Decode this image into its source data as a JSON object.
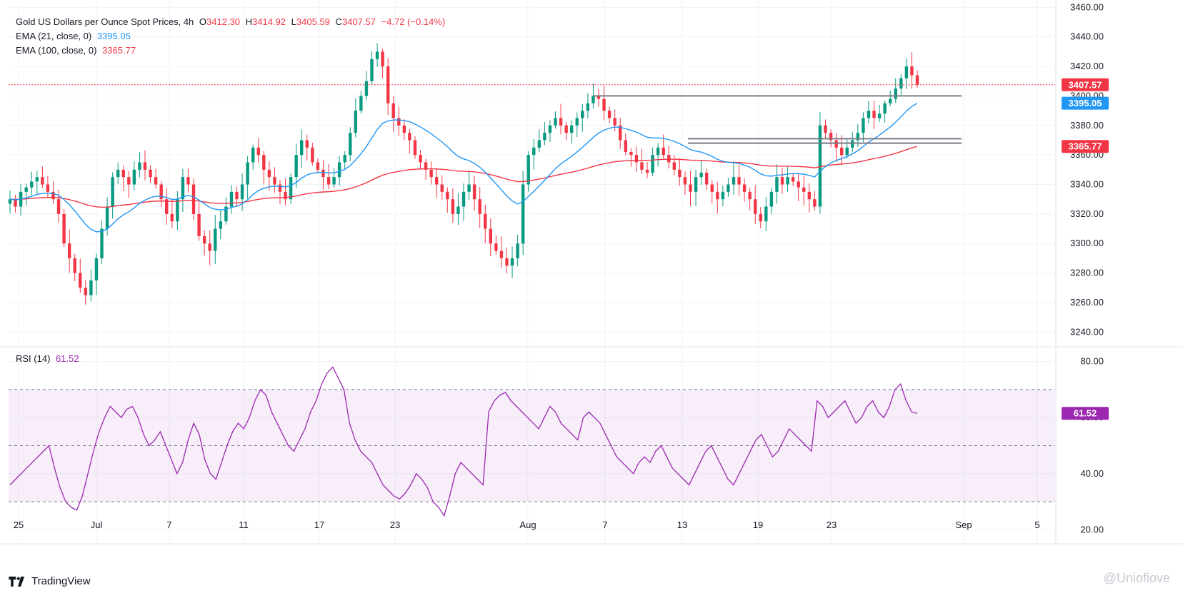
{
  "header": {
    "symbol": "Gold US Dollars per Ounce Spot Prices, 4h",
    "o_label": "O",
    "o_value": "3412.30",
    "h_label": "H",
    "h_value": "3414.92",
    "l_label": "L",
    "l_value": "3405.59",
    "c_label": "C",
    "c_value": "3407.57",
    "change": "−4.72 (−0.14%)"
  },
  "ema21": {
    "label": "EMA (21, close, 0)",
    "value": "3395.05",
    "color": "#2196f3"
  },
  "ema100": {
    "label": "EMA (100, close, 0)",
    "value": "3365.77",
    "color": "#f23645"
  },
  "rsi": {
    "label": "RSI (14)",
    "value": "61.52",
    "color": "#9c27b0"
  },
  "footer": {
    "brand": "TradingView",
    "watermark": "@Uniofiove"
  },
  "colors": {
    "up": "#089981",
    "down": "#f23645",
    "grid": "#f0f3fa",
    "rsi_band": "#9c27b0"
  },
  "chart_data": [
    {
      "type": "candlestick",
      "title": "Gold US Dollars per Ounce Spot Prices, 4h",
      "timeframe": "4h",
      "x_ticks": [
        "25",
        "Jul",
        "7",
        "11",
        "17",
        "23",
        "Aug",
        "7",
        "13",
        "19",
        "23",
        "Sep",
        "5"
      ],
      "y_ticks": [
        3240,
        3260,
        3280,
        3300,
        3320,
        3340,
        3360,
        3380,
        3400,
        3420,
        3440,
        3460
      ],
      "ylim": [
        3230,
        3465
      ],
      "last_price": 3407.57,
      "close_series": [
        3330,
        3325,
        3335,
        3338,
        3342,
        3345,
        3340,
        3335,
        3330,
        3320,
        3300,
        3290,
        3280,
        3270,
        3265,
        3275,
        3290,
        3310,
        3325,
        3345,
        3350,
        3345,
        3340,
        3350,
        3355,
        3350,
        3345,
        3340,
        3330,
        3320,
        3315,
        3330,
        3345,
        3340,
        3320,
        3305,
        3300,
        3295,
        3310,
        3315,
        3325,
        3335,
        3330,
        3340,
        3355,
        3365,
        3360,
        3350,
        3345,
        3340,
        3335,
        3330,
        3345,
        3360,
        3370,
        3365,
        3355,
        3350,
        3345,
        3340,
        3345,
        3355,
        3360,
        3375,
        3390,
        3400,
        3410,
        3425,
        3430,
        3420,
        3395,
        3385,
        3380,
        3375,
        3370,
        3360,
        3355,
        3350,
        3345,
        3340,
        3335,
        3330,
        3320,
        3325,
        3335,
        3340,
        3330,
        3320,
        3310,
        3300,
        3295,
        3290,
        3285,
        3290,
        3300,
        3340,
        3360,
        3365,
        3370,
        3375,
        3380,
        3385,
        3380,
        3375,
        3380,
        3385,
        3390,
        3395,
        3400,
        3398,
        3390,
        3385,
        3380,
        3370,
        3362,
        3360,
        3355,
        3350,
        3348,
        3360,
        3365,
        3360,
        3355,
        3350,
        3345,
        3340,
        3335,
        3345,
        3348,
        3340,
        3335,
        3330,
        3335,
        3340,
        3345,
        3340,
        3335,
        3330,
        3320,
        3315,
        3325,
        3335,
        3345,
        3340,
        3345,
        3342,
        3338,
        3335,
        3330,
        3325,
        3380,
        3375,
        3370,
        3365,
        3360,
        3365,
        3370,
        3375,
        3385,
        3390,
        3385,
        3388,
        3395,
        3398,
        3405,
        3412,
        3420,
        3414,
        3407.57
      ],
      "ema21_last": 3395.05,
      "ema100_last": 3365.77,
      "resistance_lines": [
        3400,
        3368,
        3371
      ],
      "rsi": {
        "label": "RSI (14)",
        "y_ticks": [
          20,
          40,
          60,
          80
        ],
        "ylim": [
          15,
          85
        ],
        "bands": [
          30,
          50,
          70
        ],
        "last": 61.52,
        "values": [
          36,
          38,
          40,
          42,
          44,
          46,
          48,
          50,
          42,
          35,
          30,
          28,
          27,
          32,
          40,
          48,
          55,
          60,
          64,
          62,
          60,
          63,
          64,
          60,
          54,
          50,
          52,
          55,
          50,
          45,
          40,
          44,
          52,
          58,
          54,
          45,
          40,
          38,
          44,
          50,
          55,
          58,
          56,
          60,
          66,
          70,
          68,
          62,
          58,
          54,
          50,
          48,
          52,
          56,
          62,
          66,
          72,
          76,
          78,
          74,
          70,
          58,
          52,
          48,
          46,
          44,
          40,
          36,
          34,
          32,
          31,
          33,
          36,
          40,
          38,
          35,
          30,
          28,
          25,
          32,
          40,
          44,
          42,
          40,
          38,
          36,
          62,
          66,
          68,
          69,
          66,
          64,
          62,
          60,
          58,
          56,
          60,
          64,
          62,
          58,
          56,
          54,
          52,
          60,
          62,
          60,
          58,
          54,
          50,
          46,
          44,
          42,
          40,
          44,
          46,
          44,
          48,
          50,
          46,
          42,
          40,
          38,
          36,
          40,
          44,
          48,
          50,
          46,
          42,
          38,
          36,
          40,
          44,
          48,
          52,
          54,
          50,
          46,
          48,
          52,
          56,
          54,
          52,
          50,
          48,
          66,
          64,
          60,
          62,
          64,
          66,
          62,
          58,
          60,
          64,
          66,
          62,
          60,
          64,
          70,
          72,
          66,
          62,
          61.52
        ]
      }
    }
  ]
}
